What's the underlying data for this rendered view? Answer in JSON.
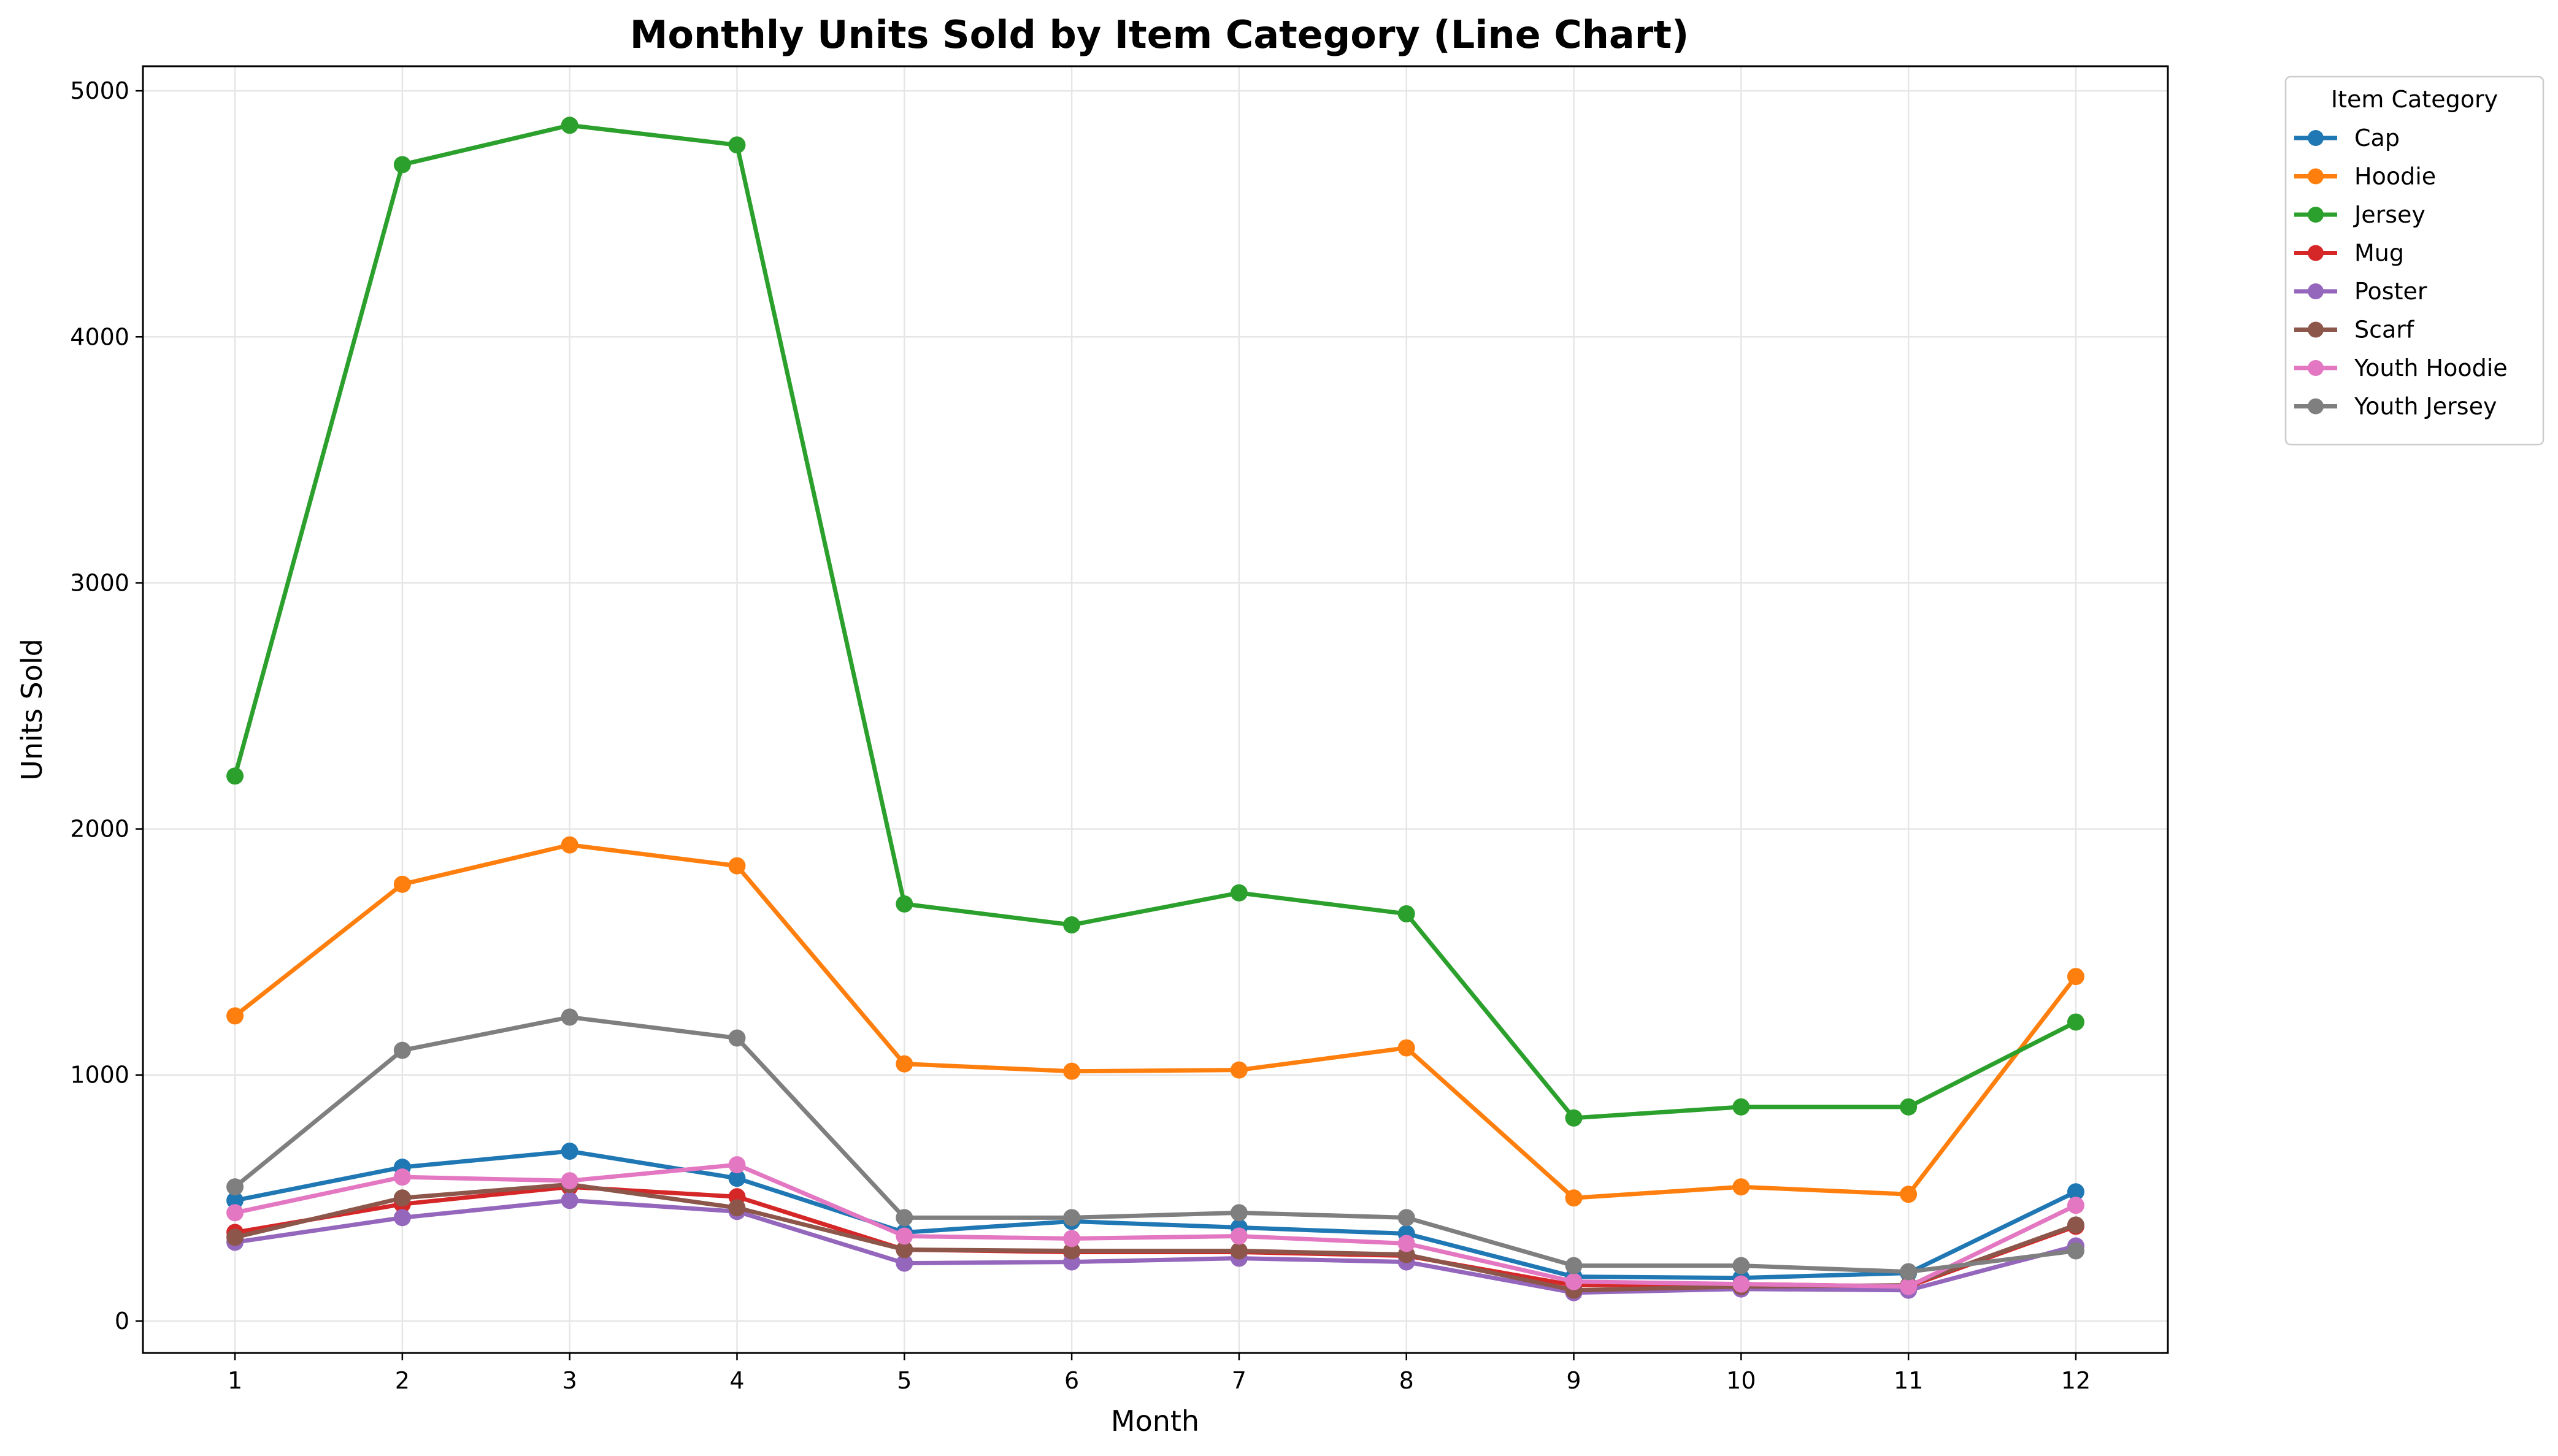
{
  "chart_data": {
    "type": "line",
    "title": "Monthly Units Sold by Item Category (Line Chart)",
    "xlabel": "Month",
    "ylabel": "Units Sold",
    "x": [
      1,
      2,
      3,
      4,
      5,
      6,
      7,
      8,
      9,
      10,
      11,
      12
    ],
    "xlim": [
      0.45,
      12.55
    ],
    "ylim": [
      -130,
      5100
    ],
    "yticks": [
      0,
      1000,
      2000,
      3000,
      4000,
      5000
    ],
    "grid": true,
    "legend": {
      "title": "Item Category",
      "placement": "outside-top-right"
    },
    "series": [
      {
        "name": "Cap",
        "color": "#1f77b4",
        "values": [
          490,
          625,
          690,
          580,
          360,
          405,
          380,
          355,
          180,
          175,
          195,
          525
        ]
      },
      {
        "name": "Hoodie",
        "color": "#ff7f0e",
        "values": [
          1240,
          1775,
          1935,
          1850,
          1045,
          1015,
          1020,
          1110,
          500,
          545,
          515,
          1400
        ]
      },
      {
        "name": "Jersey",
        "color": "#2ca02c",
        "values": [
          2215,
          4700,
          4860,
          4780,
          1695,
          1610,
          1740,
          1655,
          825,
          870,
          870,
          1215
        ]
      },
      {
        "name": "Mug",
        "color": "#d62728",
        "values": [
          360,
          475,
          545,
          505,
          290,
          280,
          280,
          265,
          145,
          150,
          140,
          385
        ]
      },
      {
        "name": "Poster",
        "color": "#9467bd",
        "values": [
          320,
          420,
          490,
          445,
          235,
          240,
          255,
          240,
          115,
          130,
          125,
          305
        ]
      },
      {
        "name": "Scarf",
        "color": "#8c564b",
        "values": [
          340,
          500,
          555,
          460,
          290,
          285,
          285,
          270,
          125,
          140,
          145,
          390
        ]
      },
      {
        "name": "Youth Hoodie",
        "color": "#e377c2",
        "values": [
          440,
          585,
          570,
          635,
          345,
          335,
          345,
          315,
          160,
          150,
          140,
          470
        ]
      },
      {
        "name": "Youth Jersey",
        "color": "#7f7f7f",
        "values": [
          545,
          1100,
          1235,
          1150,
          420,
          420,
          440,
          420,
          225,
          225,
          200,
          285
        ]
      }
    ]
  }
}
